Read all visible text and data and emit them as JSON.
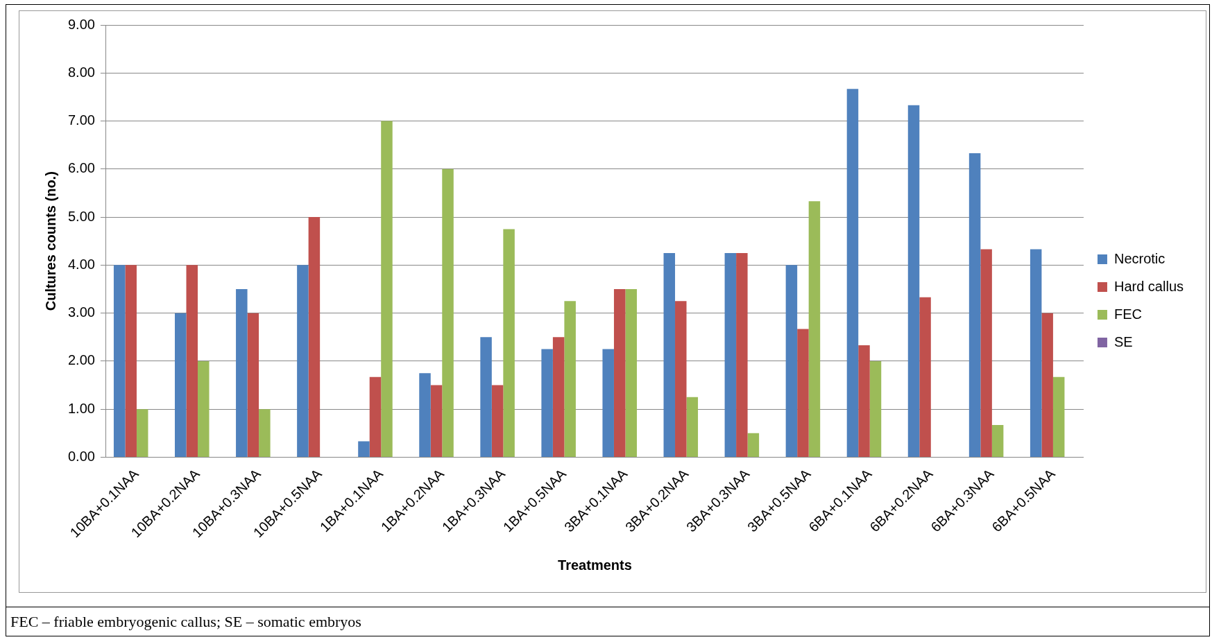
{
  "chart_data": {
    "type": "bar",
    "xlabel": "Treatments",
    "ylabel": "Cultures counts (no.)",
    "categories": [
      "10BA+0.1NAA",
      "10BA+0.2NAA",
      "10BA+0.3NAA",
      "10BA+0.5NAA",
      "1BA+0.1NAA",
      "1BA+0.2NAA",
      "1BA+0.3NAA",
      "1BA+0.5NAA",
      "3BA+0.1NAA",
      "3BA+0.2NAA",
      "3BA+0.3NAA",
      "3BA+0.5NAA",
      "6BA+0.1NAA",
      "6BA+0.2NAA",
      "6BA+0.3NAA",
      "6BA+0.5NAA"
    ],
    "series": [
      {
        "name": "Necrotic",
        "color": "#4f81bd",
        "values": [
          4,
          3,
          3.5,
          4,
          0.33,
          1.75,
          2.5,
          2.25,
          2.25,
          4.25,
          4.25,
          4,
          7.67,
          7.33,
          6.33,
          4.33
        ]
      },
      {
        "name": "Hard callus",
        "color": "#c0504d",
        "values": [
          4,
          4,
          3,
          5,
          1.67,
          1.5,
          1.5,
          2.5,
          3.5,
          3.25,
          4.25,
          2.67,
          2.33,
          3.33,
          4.33,
          3
        ]
      },
      {
        "name": "FEC",
        "color": "#9bbb59",
        "values": [
          1,
          2,
          1,
          0,
          7,
          6,
          4.75,
          3.25,
          3.5,
          1.25,
          0.5,
          5.33,
          2,
          0,
          0.67,
          1.67
        ]
      },
      {
        "name": "SE",
        "color": "#8064a2",
        "values": [
          0,
          0,
          0,
          0,
          0,
          0,
          0,
          0,
          0,
          0,
          0,
          0,
          0,
          0,
          0,
          0
        ]
      }
    ],
    "ylim": [
      0,
      9
    ],
    "yticks": [
      {
        "value": 0,
        "label": "0.00"
      },
      {
        "value": 1,
        "label": "1.00"
      },
      {
        "value": 2,
        "label": "2.00"
      },
      {
        "value": 3,
        "label": "3.00"
      },
      {
        "value": 4,
        "label": "4.00"
      },
      {
        "value": 5,
        "label": "5.00"
      },
      {
        "value": 6,
        "label": "6.00"
      },
      {
        "value": 7,
        "label": "7.00"
      },
      {
        "value": 8,
        "label": "8.00"
      },
      {
        "value": 9,
        "label": "9.00"
      }
    ],
    "grid": "y",
    "legend": "right",
    "annotations": [
      "FEC – friable embryogenic callus; SE – somatic embryos"
    ]
  }
}
